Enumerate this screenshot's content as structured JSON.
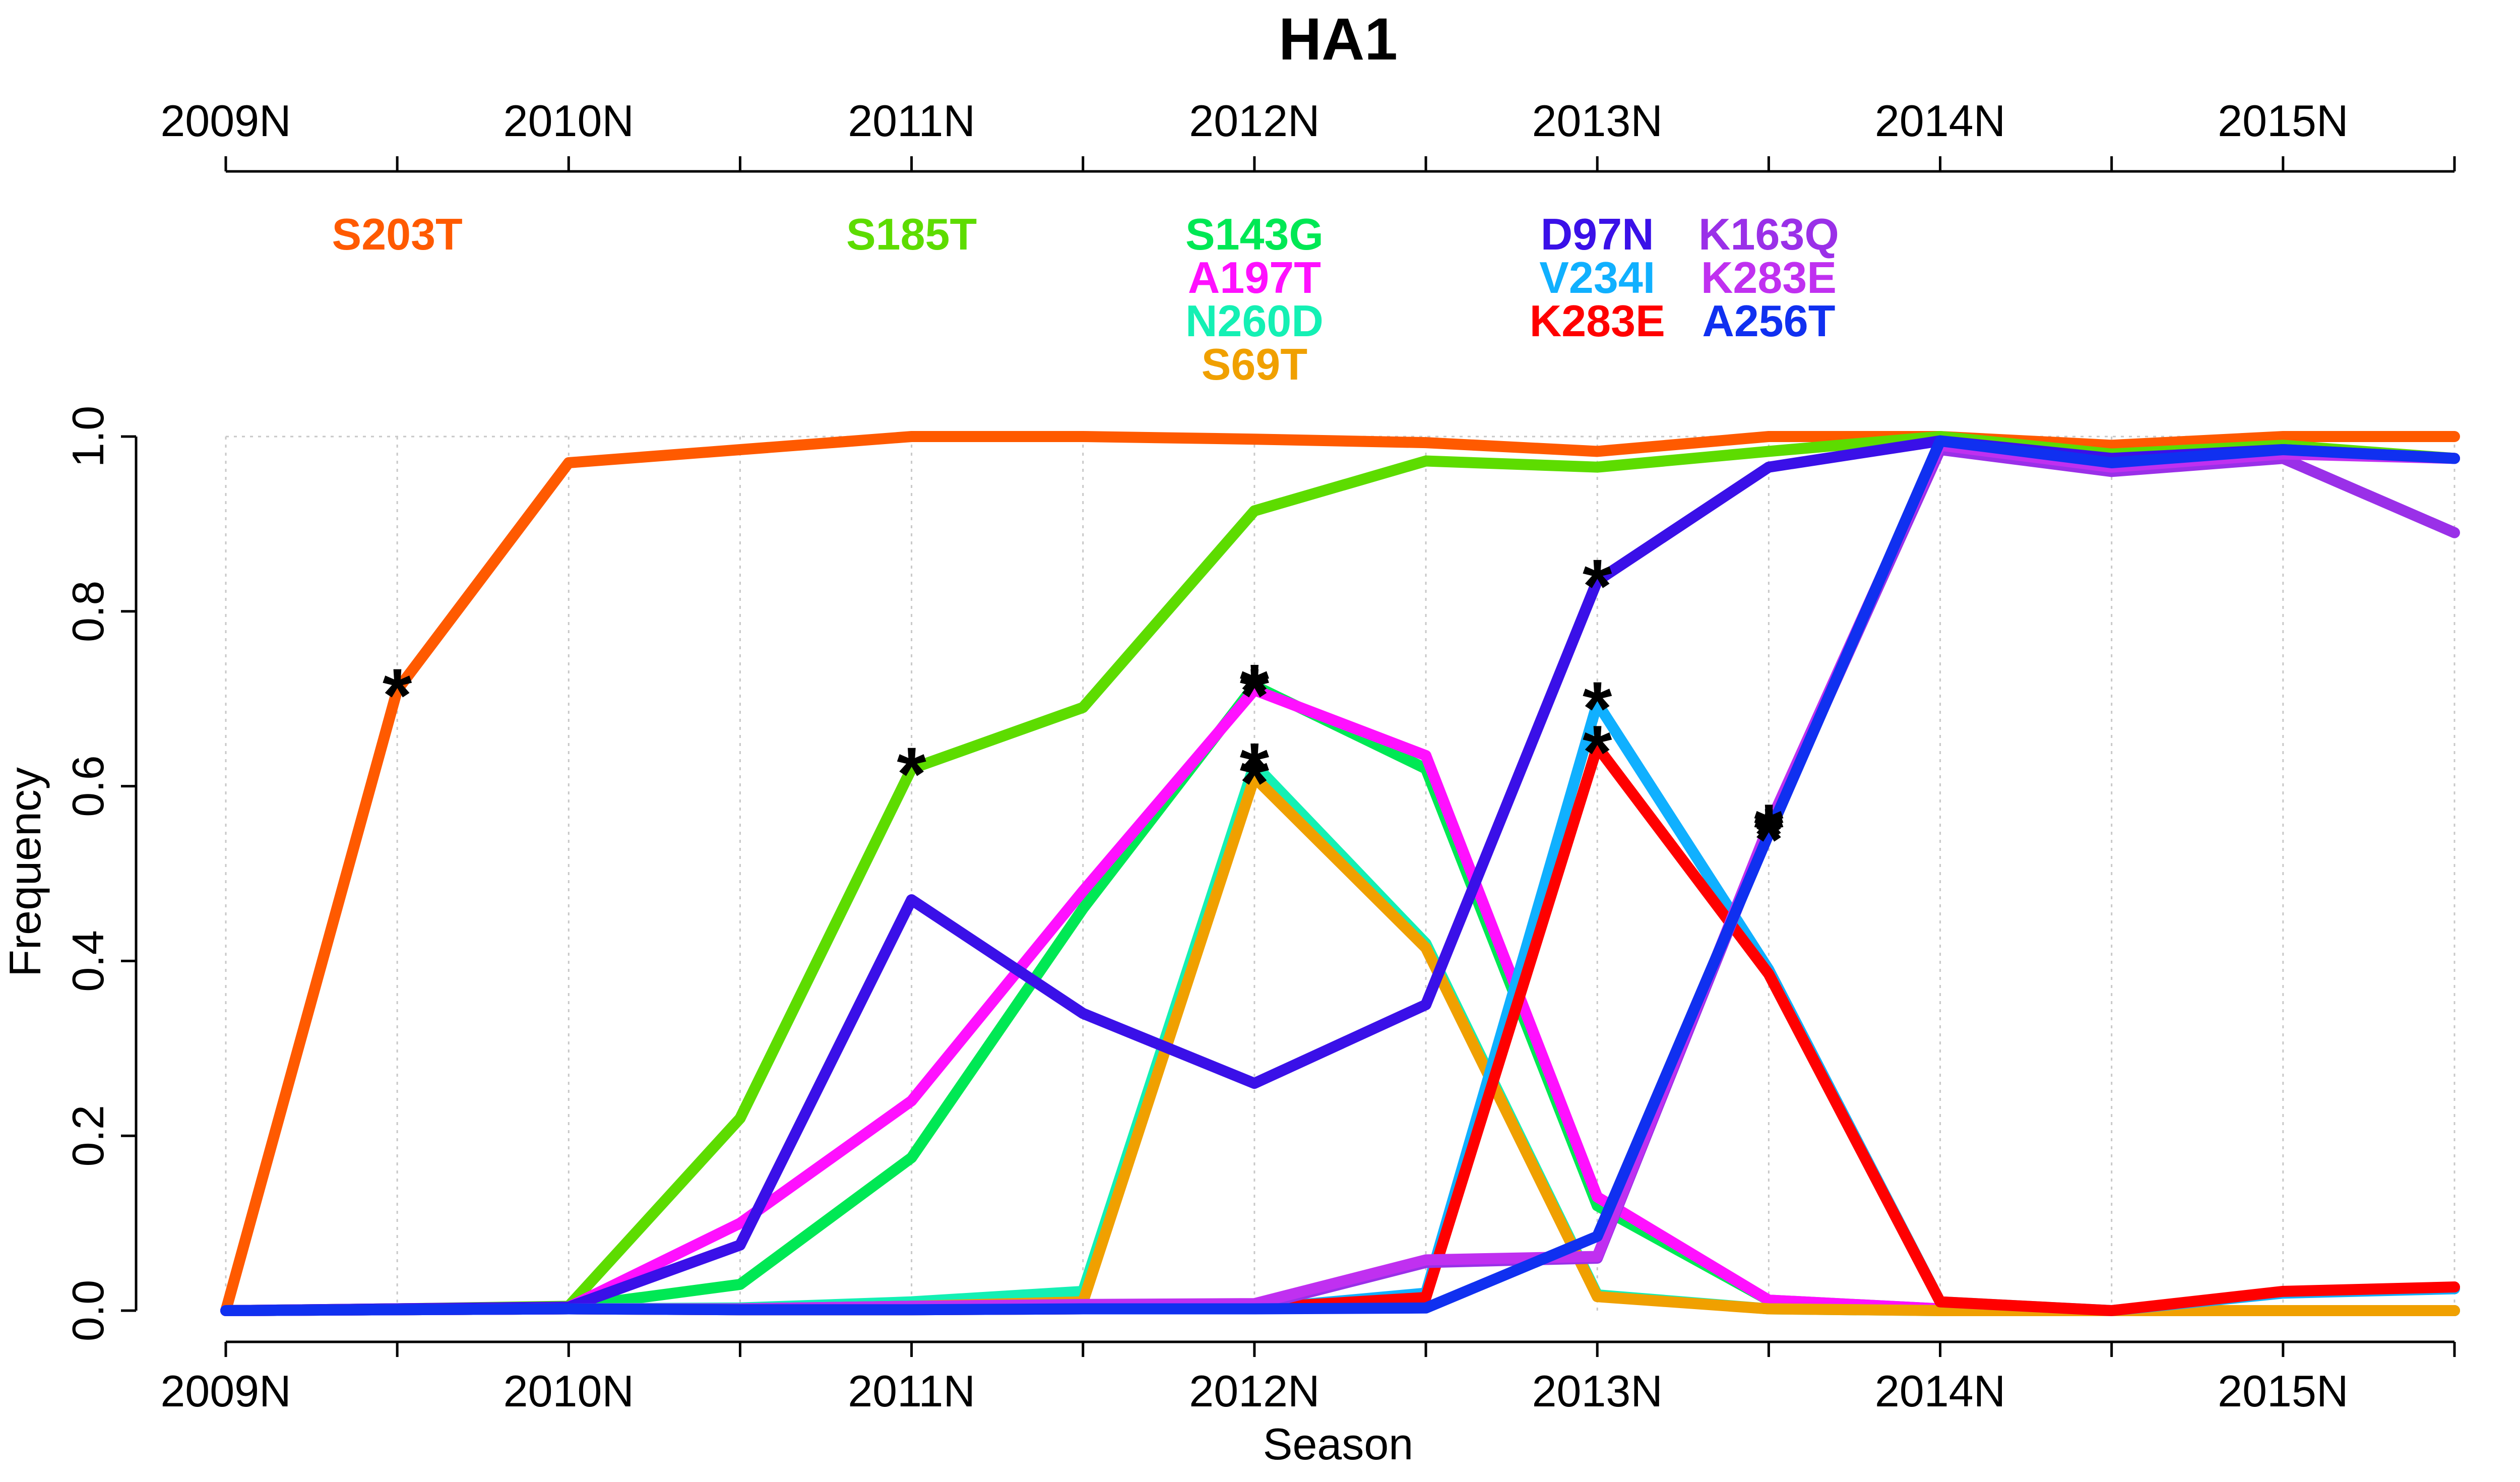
{
  "chart_data": {
    "type": "line",
    "title": "HA1",
    "xlabel": "Season",
    "ylabel": "Frequency",
    "ylim": [
      0,
      1
    ],
    "y_ticks": [
      "0.0",
      "0.2",
      "0.4",
      "0.6",
      "0.8",
      "1.0"
    ],
    "grid": true,
    "x_tick_labels": [
      "2009N",
      "2010N",
      "2011N",
      "2012N",
      "2013N",
      "2014N",
      "2015N"
    ],
    "x": [
      2009,
      2009.5,
      2010,
      2010.5,
      2011,
      2011.5,
      2012,
      2012.5,
      2013,
      2013.5,
      2014,
      2014.5,
      2015,
      2015.5
    ],
    "series": [
      {
        "name": "S203T",
        "color": "#ff5a00",
        "values": [
          0,
          0.71,
          0.97,
          0.985,
          1.0,
          1.0,
          0.997,
          0.993,
          0.983,
          1.0,
          1.0,
          0.99,
          1.0,
          1.0
        ]
      },
      {
        "name": "S185T",
        "color": "#5ddc00",
        "values": [
          0,
          0.002,
          0.005,
          0.22,
          0.62,
          0.69,
          0.915,
          0.972,
          0.965,
          0.983,
          1.0,
          0.98,
          0.99,
          0.975
        ]
      },
      {
        "name": "S143G",
        "color": "#00e854",
        "values": [
          0,
          0.002,
          0.004,
          0.03,
          0.175,
          0.46,
          0.715,
          0.62,
          0.12,
          0.012,
          0.002,
          0.0,
          0.0,
          0.0
        ]
      },
      {
        "name": "A197T",
        "color": "#ff10ff",
        "values": [
          0,
          0.002,
          0.004,
          0.1,
          0.24,
          0.48,
          0.71,
          0.635,
          0.13,
          0.012,
          0.002,
          0.0,
          0.0,
          0.0
        ]
      },
      {
        "name": "N260D",
        "color": "#14f0b4",
        "values": [
          0,
          0.001,
          0.002,
          0.003,
          0.01,
          0.022,
          0.625,
          0.42,
          0.018,
          0.002,
          0.0,
          0.0,
          0.0,
          0.0
        ]
      },
      {
        "name": "S69T",
        "color": "#f0a000",
        "values": [
          0,
          0.001,
          0.002,
          0.002,
          0.005,
          0.01,
          0.61,
          0.415,
          0.016,
          0.002,
          0.0,
          0.0,
          0.0,
          0.0
        ]
      },
      {
        "name": "D97N",
        "color": "#3a10e8",
        "values": [
          0,
          0.002,
          0.004,
          0.075,
          0.47,
          0.34,
          0.26,
          0.35,
          0.835,
          0.965,
          0.995,
          0.975,
          0.985,
          0.975
        ]
      },
      {
        "name": "V234I",
        "color": "#10b0ff",
        "values": [
          0,
          0.001,
          0.002,
          0.001,
          0.001,
          0.002,
          0.002,
          0.02,
          0.695,
          0.39,
          0.01,
          0.0,
          0.02,
          0.025
        ]
      },
      {
        "name": "K283E",
        "color": "#ff0000",
        "values": [
          0,
          0.001,
          0.002,
          0.001,
          0.001,
          0.002,
          0.003,
          0.015,
          0.645,
          0.385,
          0.01,
          0.0,
          0.022,
          0.027
        ]
      },
      {
        "name": "K163Q",
        "color": "#9a30e8",
        "values": [
          0,
          0.001,
          0.002,
          0.002,
          0.005,
          0.005,
          0.005,
          0.055,
          0.06,
          0.55,
          0.985,
          0.96,
          0.975,
          0.89
        ]
      },
      {
        "name": "K283E",
        "color": "#c030f0",
        "values": [
          0,
          0.001,
          0.002,
          0.002,
          0.005,
          0.007,
          0.008,
          0.058,
          0.062,
          0.555,
          0.99,
          0.965,
          0.98,
          0.975
        ]
      },
      {
        "name": "A256T",
        "color": "#1030f0",
        "values": [
          0,
          0.001,
          0.002,
          0.001,
          0.001,
          0.002,
          0.002,
          0.003,
          0.085,
          0.545,
          0.995,
          0.97,
          0.985,
          0.975
        ]
      }
    ],
    "annotations": [
      {
        "text": "S203T",
        "color": "#ff5a00",
        "x": 2009.5,
        "row": 0
      },
      {
        "text": "S185T",
        "color": "#5ddc00",
        "x": 2011,
        "row": 0
      },
      {
        "text": "S143G",
        "color": "#00e854",
        "x": 2012,
        "row": 0
      },
      {
        "text": "A197T",
        "color": "#ff10ff",
        "x": 2012,
        "row": 1
      },
      {
        "text": "N260D",
        "color": "#14f0b4",
        "x": 2012,
        "row": 2
      },
      {
        "text": "S69T",
        "color": "#f0a000",
        "x": 2012,
        "row": 3
      },
      {
        "text": "D97N",
        "color": "#3a10e8",
        "x": 2013,
        "row": 0
      },
      {
        "text": "V234I",
        "color": "#10b0ff",
        "x": 2013,
        "row": 1
      },
      {
        "text": "K283E",
        "color": "#ff0000",
        "x": 2013,
        "row": 2
      },
      {
        "text": "K163Q",
        "color": "#9a30e8",
        "x": 2013.5,
        "row": 0
      },
      {
        "text": "K283E",
        "color": "#c030f0",
        "x": 2013.5,
        "row": 1
      },
      {
        "text": "A256T",
        "color": "#1030f0",
        "x": 2013.5,
        "row": 2
      }
    ],
    "markers": [
      {
        "x": 2009.5,
        "y": 0.71
      },
      {
        "x": 2011,
        "y": 0.62
      },
      {
        "x": 2012,
        "y": 0.715
      },
      {
        "x": 2012,
        "y": 0.71
      },
      {
        "x": 2012,
        "y": 0.625
      },
      {
        "x": 2012,
        "y": 0.61
      },
      {
        "x": 2013,
        "y": 0.835
      },
      {
        "x": 2013,
        "y": 0.695
      },
      {
        "x": 2013,
        "y": 0.645
      },
      {
        "x": 2013.5,
        "y": 0.55
      },
      {
        "x": 2013.5,
        "y": 0.555
      },
      {
        "x": 2013.5,
        "y": 0.545
      }
    ]
  }
}
